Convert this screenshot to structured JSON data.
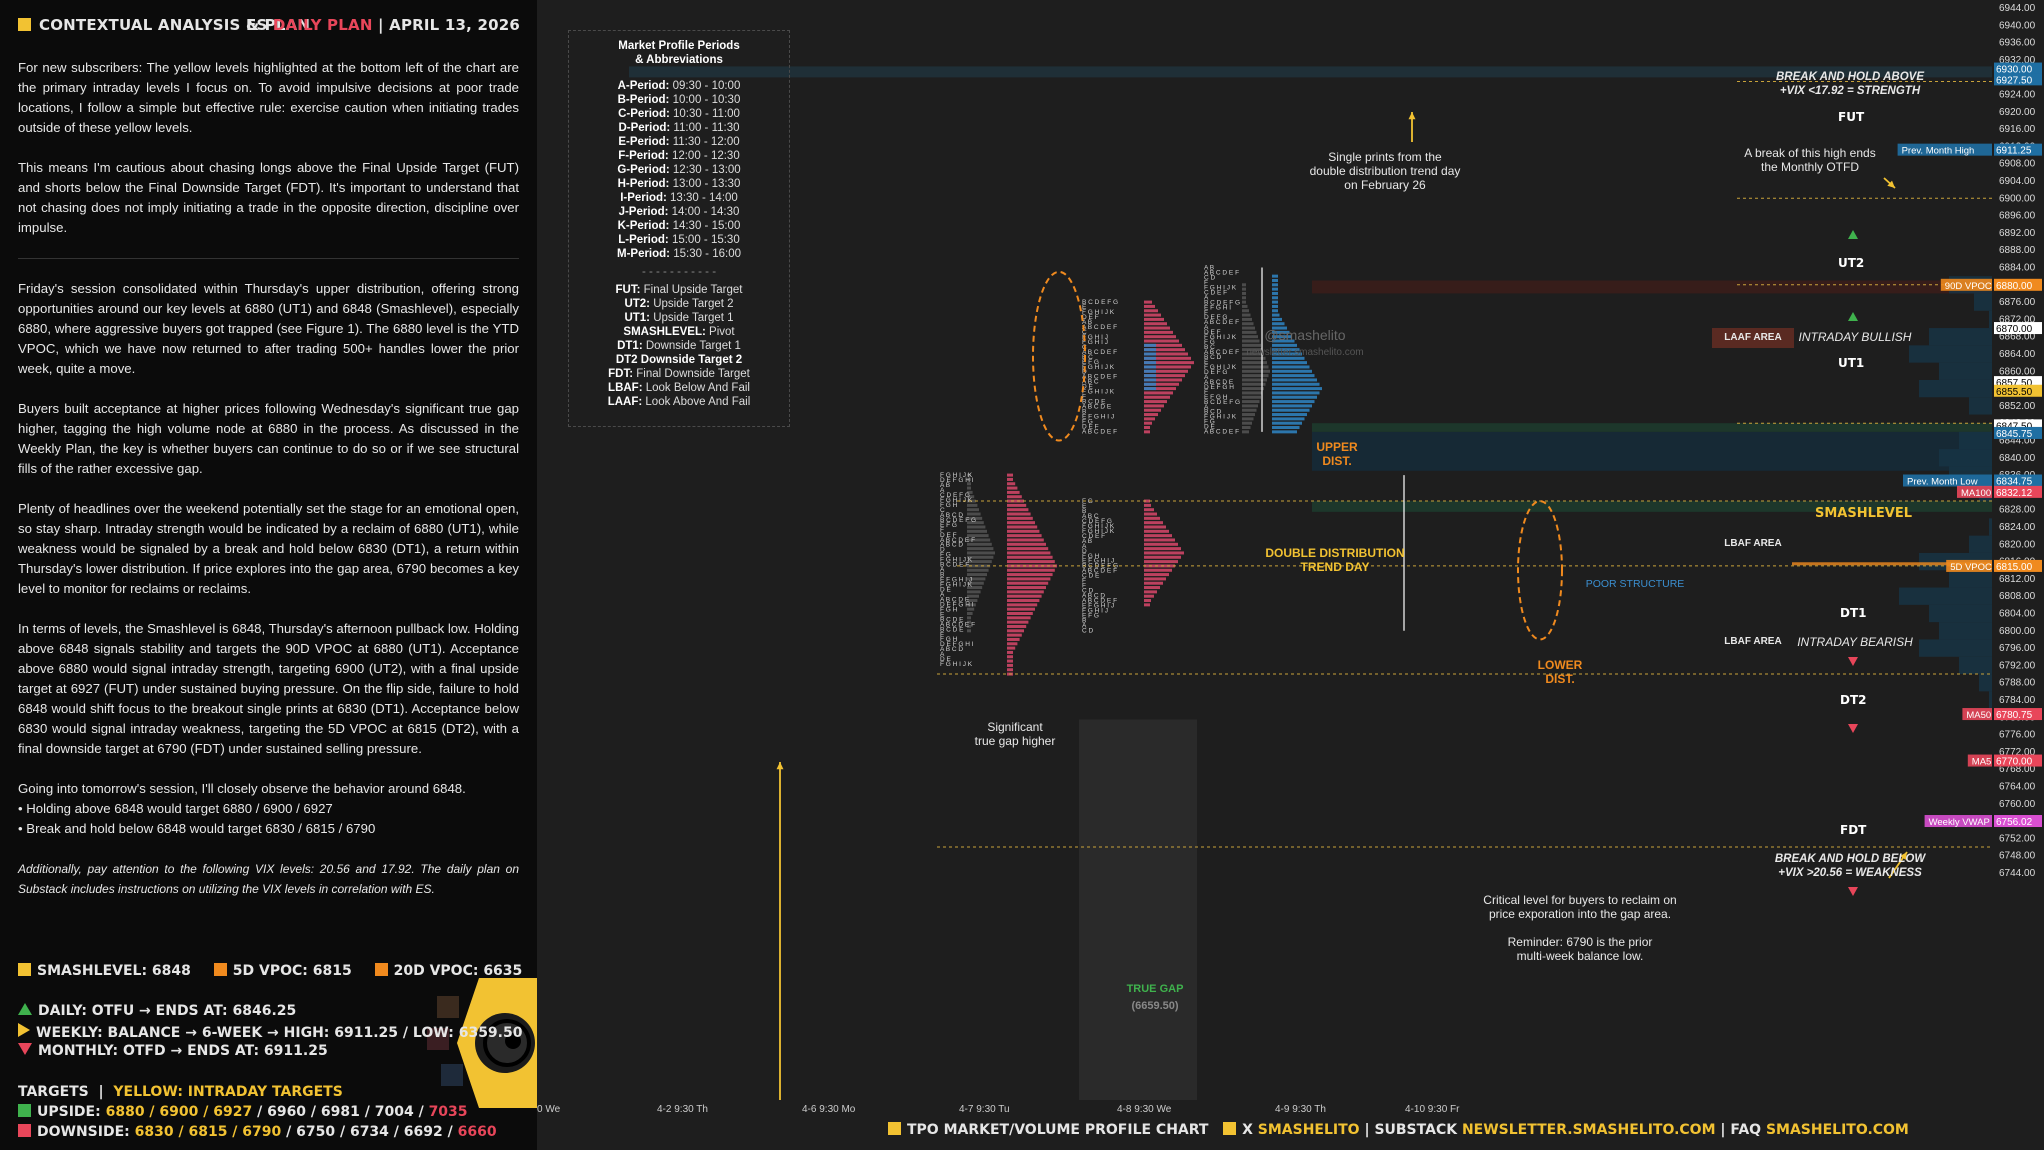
{
  "header": {
    "title": "CONTEXTUAL ANALYSIS & PLAN",
    "symbol": "ES",
    "plan": "DAILY PLAN",
    "sep": "|",
    "date": "APRIL 13, 2026"
  },
  "paragraphs": {
    "p1": "For new subscribers: The yellow levels highlighted at the bottom left of the chart are the primary intraday levels I focus on. To avoid impulsive decisions at poor trade locations, I follow a simple but effective rule: exercise caution when initiating trades outside of these yellow levels.",
    "p2": "This means I'm cautious about chasing longs above the Final Upside Target (FUT) and shorts below the Final Downside Target (FDT). It's important to understand that not chasing does not imply initiating a trade in the opposite direction, discipline over impulse.",
    "p3": "Friday's session consolidated within Thursday's upper distribution, offering strong opportunities around our key levels at 6880 (UT1) and 6848 (Smashlevel), especially 6880, where aggressive buyers got trapped (see Figure 1). The 6880 level is the YTD VPOC, which we have now returned to after trading 500+ handles lower the prior week, quite a move.",
    "p4": "Buyers built acceptance at higher prices following Wednesday's significant true gap higher, tagging the high volume node at 6880 in the process. As discussed in the Weekly Plan, the key is whether buyers can continue to do so or if we see structural fills of the rather excessive gap.",
    "p5": "Plenty of headlines over the weekend potentially set the stage for an emotional open, so stay sharp. Intraday strength would be indicated by a reclaim of 6880 (UT1), while weakness would be signaled by a break and hold below 6830 (DT1), a return within Thursday's lower distribution. If price explores into the gap area, 6790 becomes a key level to monitor for reclaims or reclaims.",
    "p6": "In terms of levels, the Smashlevel is 6848, Thursday's afternoon pullback low. Holding above 6848 signals stability and targets the 90D VPOC at 6880 (UT1). Acceptance above 6880 would signal intraday strength, targeting 6900 (UT2), with a final upside target at 6927 (FUT) under sustained buying pressure. On the flip side, failure to hold 6848 would shift focus to the breakout single prints at 6830 (DT1). Acceptance below 6830 would signal intraday weakness, targeting the 5D VPOC at 6815 (DT2), with a final downside target at 6790 (FDT) under sustained selling pressure.",
    "p7a": "Going into tomorrow's session, I'll closely observe the behavior around 6848.",
    "p7b": "• Holding above 6848 would target 6880 / 6900 / 6927",
    "p7c": "• Break and hold below 6848 would target 6830 / 6815 / 6790",
    "p8": "Additionally, pay attention to the following VIX levels: 20.56 and 17.92. The daily plan on Substack includes instructions on utilizing the VIX levels in correlation with ES."
  },
  "keys": {
    "smash": "SMASHLEVEL: 6848",
    "vpoc5": "5D VPOC: 6815",
    "vpoc20": "20D VPOC: 6635",
    "daily": "DAILY: OTFU → ENDS AT: 6846.25",
    "weekly": "WEEKLY: BALANCE → 6-WEEK → HIGH: 6911.25 / LOW: 6359.50",
    "monthly": "MONTHLY: OTFD → ENDS AT: 6911.25",
    "targets_label": "TARGETS",
    "targets_yellow": "YELLOW: INTRADAY TARGETS",
    "upside_label": "UPSIDE:",
    "upside_yellow": "6880 / 6900 / 6927",
    "upside_white": "/ 6960 / 6981 / 7004 /",
    "upside_red": "7035",
    "downside_label": "DOWNSIDE:",
    "downside_yellow": "6830 / 6815 / 6790",
    "downside_white": "/ 6750 / 6734 / 6692 /",
    "downside_red": "6660"
  },
  "legend": {
    "title": "Market Profile Periods\n& Abbreviations",
    "periods": [
      "A-Period: 09:30 - 10:00",
      "B-Period: 10:00 - 10:30",
      "C-Period: 10:30 - 11:00",
      "D-Period: 11:00 - 11:30",
      "E-Period: 11:30 - 12:00",
      "F-Period: 12:00 - 12:30",
      "G-Period: 12:30 - 13:00",
      "H-Period: 13:00 - 13:30",
      "I-Period: 13:30 - 14:00",
      "J-Period: 14:00 - 14:30",
      "K-Period: 14:30 - 15:00",
      "L-Period: 15:00 - 15:30",
      "M-Period: 15:30 - 16:00"
    ],
    "divider": "- - - - - - - - - - -",
    "abbr": [
      "FUT: Final Upside Target",
      "UT2: Upside Target 2",
      "UT1: Upside Target 1",
      "SMASHLEVEL: Pivot",
      "DT1: Downside Target 1",
      "DT2 Downside Target 2",
      "FDT: Final Downside Target",
      "LBAF: Look Below And Fail",
      "LAAF: Look Above And Fail"
    ]
  },
  "annotations": {
    "single_prints": "Single prints from the\ndouble distribution trend day\non February 26",
    "break_hold_above": "BREAK AND HOLD ABOVE\n+VIX <17.92 = STRENGTH",
    "monthly_otfd": "A break of this high ends\nthe Monthly OTFD",
    "upper_dist": "UPPER\nDIST.",
    "lower_dist": "LOWER\nDIST.",
    "ddtd": "DOUBLE DISTRIBUTION\nTREND DAY",
    "poor": "POOR STRUCTURE",
    "gap": "Significant\ntrue gap higher",
    "true_gap": "TRUE GAP",
    "true_gap_val": "(6659.50)",
    "critical": "Critical level for buyers to reclaim on\nprice exporation into the gap area.",
    "reminder": "Reminder: 6790 is the prior\nmulti-week balance low.",
    "break_hold_below": "BREAK AND HOLD BELOW\n+VIX >20.56 = WEAKNESS",
    "laaf": "LAAF AREA",
    "intraday_bull": "INTRADAY BULLISH",
    "lbaf": "LBAF AREA",
    "intraday_bear": "INTRADAY BEARISH",
    "watermark1": "@smashelito",
    "watermark2": "newsletter.smashelito.com"
  },
  "levels": {
    "fut": "FUT",
    "ut2": "UT2",
    "ut1": "UT1",
    "smash": "SMASHLEVEL",
    "dt1": "DT1",
    "dt2": "DT2",
    "fdt": "FDT"
  },
  "footer": {
    "a": "TPO MARKET/VOLUME PROFILE CHART",
    "b": "X",
    "c": "SMASHELITO",
    "d": "SUBSTACK",
    "e": "NEWSLETTER.SMASHELITO.COM",
    "f": "FAQ",
    "g": "SMASHELITO.COM",
    "sep": "|"
  },
  "chart_data": {
    "type": "table",
    "y_axis": {
      "min": 6744,
      "max": 6944,
      "step": 4,
      "labels": [
        "6944.00",
        "6940.00",
        "6936.00",
        "6932.00",
        "6928.00",
        "6924.00",
        "6920.00",
        "6916.00",
        "6912.00",
        "6908.00",
        "6904.00",
        "6900.00",
        "6896.00",
        "6892.00",
        "6888.00",
        "6884.00",
        "6880.00",
        "6876.00",
        "6872.00",
        "6868.00",
        "6864.00",
        "6860.00",
        "6856.00",
        "6852.00",
        "6848.00",
        "6844.00",
        "6840.00",
        "6836.00",
        "6832.00",
        "6828.00",
        "6824.00",
        "6820.00",
        "6816.00",
        "6812.00",
        "6808.00",
        "6804.00",
        "6800.00",
        "6796.00",
        "6792.00",
        "6788.00",
        "6784.00",
        "6780.00",
        "6776.00",
        "6772.00",
        "6768.00",
        "6764.00",
        "6760.00",
        "6756.00",
        "6752.00",
        "6748.00",
        "6744.00"
      ]
    },
    "x_axis": [
      "0 We",
      "4-2  9:30 Th",
      "4-6  9:30 Mo",
      "4-7  9:30 Tu",
      "4-8  9:30 We",
      "4-9  9:30 Th",
      "4-10  9:30 Fr"
    ],
    "price_levels": [
      {
        "label": "6927.00",
        "value": 6927
      },
      {
        "label": "6900.00",
        "value": 6900
      },
      {
        "label": "6880.00",
        "value": 6880
      },
      {
        "label": "6848.00",
        "value": 6848
      },
      {
        "label": "6830.00",
        "value": 6830
      },
      {
        "label": "6815.00",
        "value": 6815
      },
      {
        "label": "6790.00",
        "value": 6790
      },
      {
        "label": "6750.00",
        "value": 6750
      }
    ],
    "right_tags": [
      {
        "label": "6930.00",
        "value": 6930,
        "color": "#1f6fa3"
      },
      {
        "label": "6927.50",
        "value": 6927.5,
        "color": "#1f6fa3"
      },
      {
        "label": "6911.25",
        "value": 6911.25,
        "color": "#1f6fa3",
        "name": "Prev. Month High"
      },
      {
        "label": "6880.00",
        "value": 6880,
        "color": "#f08a1e",
        "name": "90D VPOC"
      },
      {
        "label": "6870.00",
        "value": 6870,
        "color": "#ffffff"
      },
      {
        "label": "6857.50",
        "value": 6857.5,
        "color": "#ffffff"
      },
      {
        "label": "6855.50",
        "value": 6855.5,
        "color": "#f2c232"
      },
      {
        "label": "6847.50",
        "value": 6847.5,
        "color": "#ffffff"
      },
      {
        "label": "6845.75",
        "value": 6845.75,
        "color": "#1f6fa3"
      },
      {
        "label": "6834.75",
        "value": 6834.75,
        "color": "#1f6fa3",
        "name": "Prev. Month Low"
      },
      {
        "label": "6832.12",
        "value": 6832.12,
        "color": "#e8465a",
        "name": "MA100"
      },
      {
        "label": "6815.00",
        "value": 6815,
        "color": "#f08a1e",
        "name": "5D VPOC"
      },
      {
        "label": "6780.75",
        "value": 6780.75,
        "color": "#e8465a",
        "name": "MA50"
      },
      {
        "label": "6770.00",
        "value": 6770,
        "color": "#e8465a",
        "name": "MA5"
      },
      {
        "label": "6756.02",
        "value": 6756.02,
        "color": "#d94fd1",
        "name": "Weekly VWAP"
      }
    ]
  }
}
